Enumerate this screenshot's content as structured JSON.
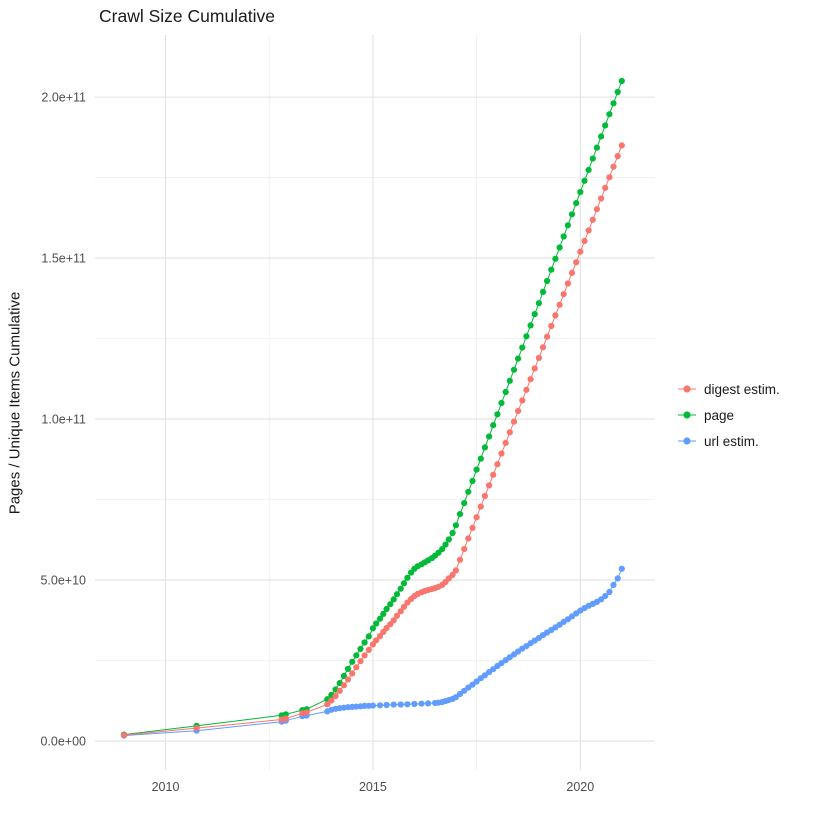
{
  "chart_data": {
    "type": "line",
    "markers": true,
    "title": "Crawl Size Cumulative",
    "xlabel": "",
    "ylabel": "Pages / Unique Items Cumulative",
    "grid": true,
    "legend_position": "right",
    "value_unit_multiplier": 1000000000.0,
    "axes": {
      "x": {
        "ticks": [
          2010,
          2015,
          2020
        ],
        "labels": [
          "2010",
          "2015",
          "2020"
        ],
        "range": [
          2008.3,
          2021.8
        ]
      },
      "y": {
        "ticks": [
          0,
          50,
          100,
          150,
          200
        ],
        "labels": [
          "0.0e+00",
          "5.0e+10",
          "1.0e+11",
          "1.5e+11",
          "2.0e+11"
        ],
        "range": [
          -9,
          219.3
        ]
      }
    },
    "series": [
      {
        "id": "digest-estim",
        "name": "digest estim.",
        "color": "#F8766D",
        "points": [
          [
            2009.0,
            1.8
          ],
          [
            2010.75,
            4.0
          ],
          [
            2012.8,
            6.7
          ],
          [
            2012.9,
            7.0
          ],
          [
            2013.3,
            8.6
          ],
          [
            2013.4,
            8.9
          ],
          [
            2013.9,
            11.4
          ],
          [
            2014.0,
            12.6
          ],
          [
            2014.1,
            14.0
          ],
          [
            2014.2,
            15.6
          ],
          [
            2014.3,
            17.3
          ],
          [
            2014.4,
            19.1
          ],
          [
            2014.5,
            21.0
          ],
          [
            2014.6,
            22.9
          ],
          [
            2014.7,
            24.8
          ],
          [
            2014.8,
            26.6
          ],
          [
            2014.9,
            28.3
          ],
          [
            2015.0,
            30.0
          ],
          [
            2015.08,
            31.3
          ],
          [
            2015.17,
            32.6
          ],
          [
            2015.25,
            33.9
          ],
          [
            2015.33,
            35.1
          ],
          [
            2015.42,
            36.3
          ],
          [
            2015.5,
            37.5
          ],
          [
            2015.58,
            38.9
          ],
          [
            2015.67,
            40.3
          ],
          [
            2015.75,
            41.7
          ],
          [
            2015.83,
            43.0
          ],
          [
            2015.92,
            44.1
          ],
          [
            2016.0,
            45.0
          ],
          [
            2016.08,
            45.7
          ],
          [
            2016.17,
            46.2
          ],
          [
            2016.25,
            46.6
          ],
          [
            2016.33,
            46.9
          ],
          [
            2016.42,
            47.2
          ],
          [
            2016.5,
            47.5
          ],
          [
            2016.58,
            47.9
          ],
          [
            2016.67,
            48.5
          ],
          [
            2016.75,
            49.4
          ],
          [
            2016.83,
            50.5
          ],
          [
            2016.92,
            51.6
          ],
          [
            2017.0,
            53.0
          ],
          [
            2017.1,
            56.3
          ],
          [
            2017.2,
            59.6
          ],
          [
            2017.3,
            62.9
          ],
          [
            2017.4,
            66.2
          ],
          [
            2017.5,
            69.5
          ],
          [
            2017.6,
            72.8
          ],
          [
            2017.7,
            76.1
          ],
          [
            2017.8,
            79.4
          ],
          [
            2017.9,
            82.7
          ],
          [
            2018.0,
            86.0
          ],
          [
            2018.1,
            89.3
          ],
          [
            2018.2,
            92.6
          ],
          [
            2018.3,
            95.9
          ],
          [
            2018.4,
            99.2
          ],
          [
            2018.5,
            102.5
          ],
          [
            2018.6,
            105.8
          ],
          [
            2018.7,
            109.1
          ],
          [
            2018.8,
            112.4
          ],
          [
            2018.9,
            115.7
          ],
          [
            2019.0,
            119.0
          ],
          [
            2019.1,
            122.3
          ],
          [
            2019.2,
            125.6
          ],
          [
            2019.3,
            128.9
          ],
          [
            2019.4,
            132.2
          ],
          [
            2019.5,
            135.5
          ],
          [
            2019.6,
            138.8
          ],
          [
            2019.7,
            142.1
          ],
          [
            2019.8,
            145.4
          ],
          [
            2019.9,
            148.7
          ],
          [
            2020.0,
            152.0
          ],
          [
            2020.1,
            155.3
          ],
          [
            2020.2,
            158.6
          ],
          [
            2020.3,
            161.9
          ],
          [
            2020.4,
            165.2
          ],
          [
            2020.5,
            168.5
          ],
          [
            2020.6,
            171.8
          ],
          [
            2020.7,
            175.1
          ],
          [
            2020.8,
            178.4
          ],
          [
            2020.9,
            181.7
          ],
          [
            2021.0,
            185.0
          ]
        ]
      },
      {
        "id": "page",
        "name": "page",
        "color": "#00BA38",
        "points": [
          [
            2009.0,
            2.0
          ],
          [
            2010.75,
            4.7
          ],
          [
            2012.8,
            8.0
          ],
          [
            2012.9,
            8.3
          ],
          [
            2013.3,
            9.6
          ],
          [
            2013.4,
            9.9
          ],
          [
            2013.9,
            13.0
          ],
          [
            2014.0,
            14.3
          ],
          [
            2014.1,
            16.0
          ],
          [
            2014.2,
            18.0
          ],
          [
            2014.3,
            20.2
          ],
          [
            2014.4,
            22.4
          ],
          [
            2014.5,
            24.6
          ],
          [
            2014.6,
            26.6
          ],
          [
            2014.7,
            28.6
          ],
          [
            2014.8,
            30.6
          ],
          [
            2014.9,
            32.5
          ],
          [
            2015.0,
            35.0
          ],
          [
            2015.08,
            36.5
          ],
          [
            2015.17,
            38.0
          ],
          [
            2015.25,
            39.5
          ],
          [
            2015.33,
            41.0
          ],
          [
            2015.42,
            42.5
          ],
          [
            2015.5,
            44.0
          ],
          [
            2015.58,
            45.6
          ],
          [
            2015.67,
            47.3
          ],
          [
            2015.75,
            49.0
          ],
          [
            2015.83,
            50.7
          ],
          [
            2015.92,
            52.3
          ],
          [
            2016.0,
            53.5
          ],
          [
            2016.08,
            54.3
          ],
          [
            2016.17,
            54.9
          ],
          [
            2016.25,
            55.5
          ],
          [
            2016.33,
            56.1
          ],
          [
            2016.42,
            56.8
          ],
          [
            2016.5,
            57.6
          ],
          [
            2016.58,
            58.5
          ],
          [
            2016.67,
            59.6
          ],
          [
            2016.75,
            61.0
          ],
          [
            2016.83,
            62.6
          ],
          [
            2016.92,
            64.6
          ],
          [
            2017.0,
            67.0
          ],
          [
            2017.1,
            70.5
          ],
          [
            2017.2,
            73.9
          ],
          [
            2017.3,
            77.4
          ],
          [
            2017.4,
            80.8
          ],
          [
            2017.5,
            84.3
          ],
          [
            2017.6,
            87.7
          ],
          [
            2017.7,
            91.2
          ],
          [
            2017.8,
            94.6
          ],
          [
            2017.9,
            98.1
          ],
          [
            2018.0,
            101.5
          ],
          [
            2018.1,
            105.0
          ],
          [
            2018.2,
            108.4
          ],
          [
            2018.3,
            111.9
          ],
          [
            2018.4,
            115.3
          ],
          [
            2018.5,
            118.8
          ],
          [
            2018.6,
            122.2
          ],
          [
            2018.7,
            125.7
          ],
          [
            2018.8,
            129.1
          ],
          [
            2018.9,
            132.6
          ],
          [
            2019.0,
            136.0
          ],
          [
            2019.1,
            139.5
          ],
          [
            2019.2,
            142.9
          ],
          [
            2019.3,
            146.4
          ],
          [
            2019.4,
            149.8
          ],
          [
            2019.5,
            153.3
          ],
          [
            2019.6,
            156.7
          ],
          [
            2019.7,
            160.2
          ],
          [
            2019.8,
            163.6
          ],
          [
            2019.9,
            167.1
          ],
          [
            2020.0,
            170.5
          ],
          [
            2020.1,
            174.0
          ],
          [
            2020.2,
            177.4
          ],
          [
            2020.3,
            180.9
          ],
          [
            2020.4,
            184.3
          ],
          [
            2020.5,
            187.8
          ],
          [
            2020.6,
            191.2
          ],
          [
            2020.7,
            194.7
          ],
          [
            2020.8,
            198.1
          ],
          [
            2020.9,
            201.6
          ],
          [
            2021.0,
            205.0
          ]
        ]
      },
      {
        "id": "url-estim",
        "name": "url estim.",
        "color": "#619CFF",
        "points": [
          [
            2009.0,
            1.7
          ],
          [
            2010.75,
            3.2
          ],
          [
            2012.8,
            6.0
          ],
          [
            2012.9,
            6.3
          ],
          [
            2013.3,
            7.7
          ],
          [
            2013.4,
            7.9
          ],
          [
            2013.9,
            9.2
          ],
          [
            2014.0,
            9.7
          ],
          [
            2014.1,
            10.0
          ],
          [
            2014.2,
            10.2
          ],
          [
            2014.3,
            10.35
          ],
          [
            2014.4,
            10.5
          ],
          [
            2014.5,
            10.6
          ],
          [
            2014.6,
            10.7
          ],
          [
            2014.7,
            10.8
          ],
          [
            2014.8,
            10.9
          ],
          [
            2014.9,
            10.95
          ],
          [
            2015.0,
            11.0
          ],
          [
            2015.17,
            11.1
          ],
          [
            2015.33,
            11.2
          ],
          [
            2015.5,
            11.3
          ],
          [
            2015.67,
            11.35
          ],
          [
            2015.83,
            11.4
          ],
          [
            2016.0,
            11.5
          ],
          [
            2016.17,
            11.6
          ],
          [
            2016.33,
            11.7
          ],
          [
            2016.5,
            11.8
          ],
          [
            2016.58,
            11.9
          ],
          [
            2016.67,
            12.1
          ],
          [
            2016.75,
            12.4
          ],
          [
            2016.83,
            12.7
          ],
          [
            2016.92,
            13.1
          ],
          [
            2017.0,
            13.6
          ],
          [
            2017.1,
            14.6
          ],
          [
            2017.2,
            15.6
          ],
          [
            2017.3,
            16.6
          ],
          [
            2017.4,
            17.5
          ],
          [
            2017.5,
            18.5
          ],
          [
            2017.6,
            19.5
          ],
          [
            2017.7,
            20.4
          ],
          [
            2017.8,
            21.4
          ],
          [
            2017.9,
            22.3
          ],
          [
            2018.0,
            23.3
          ],
          [
            2018.1,
            24.2
          ],
          [
            2018.2,
            25.1
          ],
          [
            2018.3,
            26.0
          ],
          [
            2018.4,
            26.9
          ],
          [
            2018.5,
            27.8
          ],
          [
            2018.6,
            28.7
          ],
          [
            2018.7,
            29.5
          ],
          [
            2018.8,
            30.4
          ],
          [
            2018.9,
            31.2
          ],
          [
            2019.0,
            32.0
          ],
          [
            2019.1,
            32.9
          ],
          [
            2019.2,
            33.7
          ],
          [
            2019.3,
            34.5
          ],
          [
            2019.4,
            35.3
          ],
          [
            2019.5,
            36.1
          ],
          [
            2019.6,
            37.0
          ],
          [
            2019.7,
            37.8
          ],
          [
            2019.8,
            38.7
          ],
          [
            2019.9,
            39.6
          ],
          [
            2020.0,
            40.5
          ],
          [
            2020.1,
            41.3
          ],
          [
            2020.2,
            42.0
          ],
          [
            2020.3,
            42.6
          ],
          [
            2020.4,
            43.2
          ],
          [
            2020.5,
            44.0
          ],
          [
            2020.6,
            45.0
          ],
          [
            2020.7,
            46.3
          ],
          [
            2020.8,
            48.5
          ],
          [
            2020.9,
            50.5
          ],
          [
            2021.0,
            53.5
          ]
        ]
      }
    ]
  }
}
